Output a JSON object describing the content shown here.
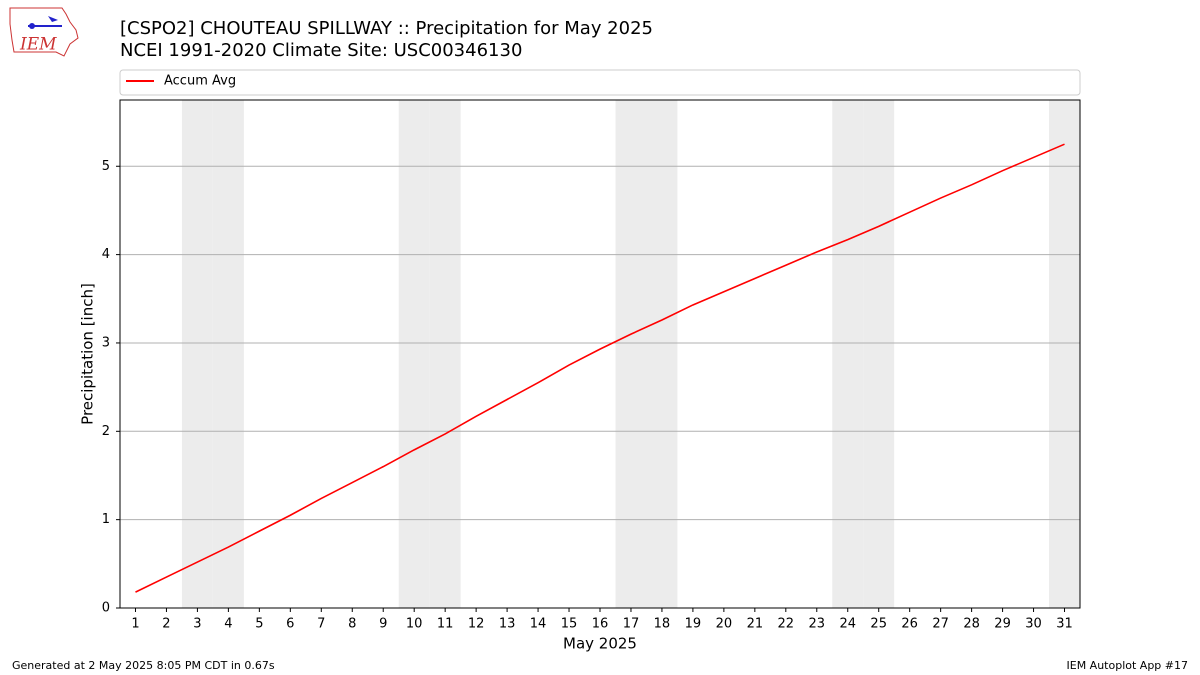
{
  "logo_text": "IEM",
  "footer": {
    "left": "Generated at 2 May 2025 8:05 PM CDT in 0.67s",
    "right": "IEM Autoplot App #17"
  },
  "chart_data": {
    "type": "line",
    "title": "[CSPO2] CHOUTEAU SPILLWAY :: Precipitation for May 2025",
    "subtitle": "NCEI 1991-2020 Climate Site: USC00346130",
    "x_label": "May 2025",
    "y_label": "Precipitation [inch]",
    "x": [
      1,
      2,
      3,
      4,
      5,
      6,
      7,
      8,
      9,
      10,
      11,
      12,
      13,
      14,
      15,
      16,
      17,
      18,
      19,
      20,
      21,
      22,
      23,
      24,
      25,
      26,
      27,
      28,
      29,
      30,
      31
    ],
    "series": [
      {
        "name": "Accum Avg",
        "color": "#ff0000",
        "values": [
          0.18,
          0.35,
          0.52,
          0.69,
          0.87,
          1.05,
          1.24,
          1.42,
          1.6,
          1.79,
          1.97,
          2.17,
          2.36,
          2.55,
          2.75,
          2.93,
          3.1,
          3.26,
          3.43,
          3.58,
          3.73,
          3.88,
          4.03,
          4.17,
          4.32,
          4.48,
          4.64,
          4.79,
          4.95,
          5.1,
          5.25
        ]
      }
    ],
    "xlim": [
      0.5,
      31.5
    ],
    "ylim": [
      0,
      5.75
    ],
    "xticks": [
      1,
      2,
      3,
      4,
      5,
      6,
      7,
      8,
      9,
      10,
      11,
      12,
      13,
      14,
      15,
      16,
      17,
      18,
      19,
      20,
      21,
      22,
      23,
      24,
      25,
      26,
      27,
      28,
      29,
      30,
      31
    ],
    "yticks": [
      0,
      1,
      2,
      3,
      4,
      5
    ],
    "shaded_x": [
      3,
      4,
      10,
      11,
      17,
      18,
      24,
      25,
      31
    ],
    "shade_color": "#ececec",
    "grid": true,
    "legend": "top"
  }
}
